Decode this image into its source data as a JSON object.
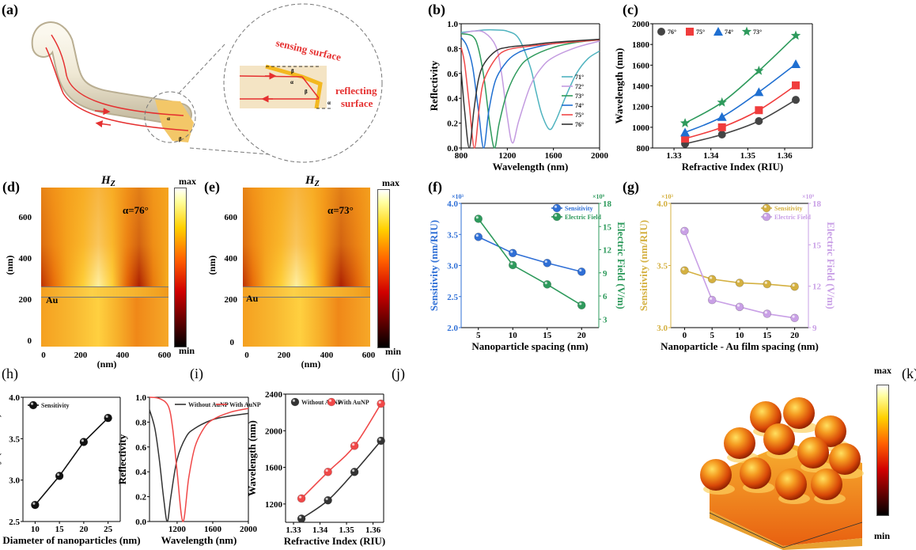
{
  "panel_labels": {
    "a": "(a)",
    "b": "(b)",
    "c": "(c)",
    "d": "(d)",
    "e": "(e)",
    "f": "(f)",
    "g": "(g)",
    "h": "(h)",
    "i": "(i)",
    "j": "(j)",
    "k": "(k)"
  },
  "panel_a": {
    "sensing_label": "sensing surface",
    "reflecting_label_1": "reflecting",
    "reflecting_label_2": "surface",
    "alpha": "α",
    "beta": "β"
  },
  "heatmaps": [
    {
      "title": "H",
      "title_sub": "Z",
      "angle_label": "α=76°",
      "layer_label": "Au",
      "max_label": "max",
      "min_label": "min",
      "xlabel": "(nm)",
      "ylabel": "(nm)",
      "xticks": [
        "0",
        "200",
        "400",
        "600"
      ],
      "yticks": [
        "600",
        "400",
        "200",
        "0"
      ]
    },
    {
      "title": "H",
      "title_sub": "Z",
      "angle_label": "α=73°",
      "layer_label": "Au",
      "max_label": "max",
      "min_label": "min",
      "xlabel": "(nm)",
      "ylabel": "(nm)",
      "xticks": [
        "0",
        "200",
        "400",
        "600"
      ],
      "yticks": [
        "600",
        "400",
        "200",
        "0"
      ]
    }
  ],
  "panel_k": {
    "max_label": "max",
    "min_label": "min"
  },
  "chart_data": [
    {
      "id": "b",
      "type": "line",
      "title": "",
      "xlabel": "Wavelength (nm)",
      "ylabel": "Reflectivity",
      "xlim": [
        800,
        2000
      ],
      "ylim": [
        0,
        1
      ],
      "xticks": [
        800,
        1200,
        1600,
        2000
      ],
      "xtick_labels": [
        "800",
        "1200",
        "1600",
        "2000"
      ],
      "yticks": [
        0,
        0.2,
        0.4,
        0.6,
        0.8,
        1.0
      ],
      "ytick_labels": [
        "0.0",
        "0.2",
        "0.4",
        "0.6",
        "0.8",
        "1.0"
      ],
      "legend": "right",
      "series": [
        {
          "name": "71°",
          "color": "#4fb3bf",
          "x": [
            800,
            900,
            1000,
            1100,
            1200,
            1300,
            1400,
            1450,
            1500,
            1565,
            1620,
            1700,
            1800,
            1900,
            2000
          ],
          "y": [
            0.93,
            0.94,
            0.95,
            0.95,
            0.94,
            0.88,
            0.65,
            0.45,
            0.27,
            0.15,
            0.22,
            0.4,
            0.6,
            0.72,
            0.78
          ]
        },
        {
          "name": "72°",
          "color": "#c39be0",
          "x": [
            800,
            900,
            1000,
            1100,
            1150,
            1200,
            1245,
            1300,
            1400,
            1500,
            1600,
            1800,
            2000
          ],
          "y": [
            0.92,
            0.94,
            0.93,
            0.82,
            0.6,
            0.25,
            0.04,
            0.22,
            0.5,
            0.65,
            0.73,
            0.81,
            0.86
          ]
        },
        {
          "name": "73°",
          "color": "#2e9a5c",
          "x": [
            800,
            900,
            950,
            1000,
            1050,
            1090,
            1130,
            1200,
            1300,
            1400,
            1600,
            1800,
            2000
          ],
          "y": [
            0.92,
            0.9,
            0.8,
            0.55,
            0.18,
            0.0,
            0.2,
            0.45,
            0.64,
            0.73,
            0.81,
            0.85,
            0.87
          ]
        },
        {
          "name": "74°",
          "color": "#1f6fd1",
          "x": [
            800,
            850,
            900,
            950,
            995,
            1040,
            1100,
            1200,
            1300,
            1400,
            1600,
            1800,
            2000
          ],
          "y": [
            0.89,
            0.82,
            0.65,
            0.3,
            0.0,
            0.3,
            0.55,
            0.7,
            0.77,
            0.8,
            0.84,
            0.86,
            0.87
          ]
        },
        {
          "name": "75°",
          "color": "#f04848",
          "x": [
            800,
            830,
            870,
            915,
            960,
            1000,
            1100,
            1200,
            1400,
            1600,
            2000
          ],
          "y": [
            0.81,
            0.68,
            0.35,
            0.0,
            0.35,
            0.55,
            0.72,
            0.79,
            0.82,
            0.84,
            0.87
          ]
        },
        {
          "name": "76°",
          "color": "#333333",
          "x": [
            800,
            830,
            870,
            910,
            950,
            1000,
            1100,
            1200,
            1400,
            1600,
            2000
          ],
          "y": [
            0.62,
            0.3,
            0.0,
            0.3,
            0.55,
            0.68,
            0.78,
            0.81,
            0.83,
            0.85,
            0.875
          ]
        }
      ]
    },
    {
      "id": "c",
      "type": "scatter",
      "title": "",
      "xlabel": "Refractive Index (RIU)",
      "ylabel": "Wavelength (nm)",
      "xlim": [
        1.3242,
        1.3675
      ],
      "ylim": [
        800,
        2000
      ],
      "xticks": [
        1.33,
        1.34,
        1.35,
        1.36
      ],
      "xtick_labels": [
        "1.33",
        "1.34",
        "1.35",
        "1.36"
      ],
      "yticks": [
        800,
        1000,
        1200,
        1400,
        1600,
        1800,
        2000
      ],
      "ytick_labels": [
        "800",
        "1000",
        "1200",
        "1400",
        "1600",
        "1800",
        "2000"
      ],
      "legend": "top-left",
      "fit": "smooth",
      "series": [
        {
          "name": "76°",
          "color": "#444444",
          "marker": "circle",
          "x": [
            1.333,
            1.343,
            1.353,
            1.363
          ],
          "y": [
            840,
            930,
            1060,
            1265
          ]
        },
        {
          "name": "75°",
          "color": "#f03c3c",
          "marker": "square",
          "x": [
            1.333,
            1.343,
            1.353,
            1.363
          ],
          "y": [
            890,
            1000,
            1165,
            1405
          ]
        },
        {
          "name": "74°",
          "color": "#1f6fd1",
          "marker": "triangle",
          "x": [
            1.333,
            1.343,
            1.353,
            1.363
          ],
          "y": [
            950,
            1100,
            1340,
            1610
          ]
        },
        {
          "name": "73°",
          "color": "#2e9a5c",
          "marker": "star",
          "x": [
            1.333,
            1.343,
            1.353,
            1.363
          ],
          "y": [
            1040,
            1240,
            1545,
            1885
          ]
        }
      ]
    },
    {
      "id": "f",
      "type": "line",
      "title": "",
      "xlabel": "Nanoparticle spacing (nm)",
      "ylabel": "Sensitivity (nm/RIU)",
      "ylabel_right": "Electric Field (V/m)",
      "y_multiplier": "×10³",
      "y_right_multiplier": "×10⁹",
      "xlim": [
        2.5,
        22.5
      ],
      "ylim": [
        2.0,
        4.0
      ],
      "ylim_right": [
        1.9,
        18
      ],
      "xticks": [
        5,
        10,
        15,
        20
      ],
      "xtick_labels": [
        "5",
        "10",
        "15",
        "20"
      ],
      "yticks": [
        2.0,
        2.5,
        3.0,
        3.5,
        4.0
      ],
      "ytick_labels": [
        "2.0",
        "2.5",
        "3.0",
        "3.5",
        "4.0"
      ],
      "yticks_right": [
        3,
        6,
        9,
        12,
        15,
        18
      ],
      "ytick_right_labels": [
        "3",
        "6",
        "9",
        "12",
        "15",
        "18"
      ],
      "left_axis_color": "#2f6fd6",
      "right_axis_color": "#2e9a5c",
      "legend": "top-right",
      "series": [
        {
          "name": "Sensitivity",
          "color": "#2f6fd6",
          "marker": "sphere",
          "axis": "left",
          "x": [
            5,
            10,
            15,
            20
          ],
          "y": [
            3.46,
            3.2,
            3.04,
            2.9
          ]
        },
        {
          "name": "Electric Field",
          "color": "#2e9a5c",
          "marker": "sphere",
          "axis": "right",
          "x": [
            5,
            10,
            15,
            20
          ],
          "y": [
            16.0,
            10.0,
            7.5,
            4.8
          ]
        }
      ]
    },
    {
      "id": "g",
      "type": "line",
      "title": "",
      "xlabel": "Nanoparticle - Au film spacing (nm)",
      "ylabel": "Sensitivity (nm/RIU)",
      "ylabel_right": "Electric Field (V/m)",
      "y_multiplier": "×10³",
      "y_right_multiplier": "×10⁹",
      "xlim": [
        -2.5,
        22.5
      ],
      "ylim": [
        3.0,
        4.0
      ],
      "ylim_right": [
        9,
        18
      ],
      "xticks": [
        0,
        5,
        10,
        15,
        20
      ],
      "xtick_labels": [
        "0",
        "5",
        "10",
        "15",
        "20"
      ],
      "yticks": [
        3.0,
        3.5,
        4.0
      ],
      "ytick_labels": [
        "3.0",
        "3.5",
        "4.0"
      ],
      "yticks_right": [
        9,
        12,
        15,
        18
      ],
      "ytick_right_labels": [
        "9",
        "12",
        "15",
        "18"
      ],
      "left_axis_color": "#d4b040",
      "right_axis_color": "#c9a0e6",
      "legend": "top-right",
      "series": [
        {
          "name": "Sensitivity",
          "color": "#d4b040",
          "marker": "sphere",
          "axis": "left",
          "x": [
            0,
            5,
            10,
            15,
            20
          ],
          "y": [
            3.46,
            3.39,
            3.36,
            3.35,
            3.33
          ]
        },
        {
          "name": "Electric Field",
          "color": "#c9a0e6",
          "marker": "sphere",
          "axis": "right",
          "x": [
            0,
            5,
            10,
            15,
            20
          ],
          "y": [
            16.0,
            11.0,
            10.5,
            10.0,
            9.7
          ]
        }
      ]
    },
    {
      "id": "h",
      "type": "line",
      "title": "",
      "xlabel": "Diameter of nanoparticles (nm)",
      "ylabel": "Sensitivity (nm/RIU)",
      "xlim": [
        7.5,
        27.5
      ],
      "ylim": [
        2.5,
        4.0
      ],
      "xticks": [
        10,
        15,
        20,
        25
      ],
      "xtick_labels": [
        "10",
        "15",
        "20",
        "25"
      ],
      "yticks": [
        2.5,
        3.0,
        3.5,
        4.0
      ],
      "ytick_labels": [
        "2.5",
        "3.0",
        "3.5",
        "4.0"
      ],
      "legend": "top-left",
      "series": [
        {
          "name": "Sensitivity",
          "color": "#111111",
          "marker": "sphere",
          "x": [
            10,
            15,
            20,
            25
          ],
          "y": [
            2.7,
            3.05,
            3.46,
            3.75
          ]
        }
      ]
    },
    {
      "id": "i",
      "type": "line",
      "title": "",
      "xlabel": "Wavelength (nm)",
      "ylabel": "Reflectivity",
      "xlim": [
        890,
        2000
      ],
      "ylim": [
        0,
        1
      ],
      "xticks": [
        1200,
        1600,
        2000
      ],
      "xtick_labels": [
        "1200",
        "1600",
        "2000"
      ],
      "yticks": [
        0,
        0.2,
        0.4,
        0.6,
        0.8,
        1.0
      ],
      "ytick_labels": [
        "0.0",
        "0.2",
        "0.4",
        "0.6",
        "0.8",
        "1.0"
      ],
      "legend": "top-right",
      "series": [
        {
          "name": "Without AuNP",
          "color": "#333333",
          "x": [
            890,
            950,
            1000,
            1050,
            1090,
            1130,
            1200,
            1300,
            1400,
            1600,
            1800,
            2000
          ],
          "y": [
            0.9,
            0.75,
            0.5,
            0.18,
            0.0,
            0.2,
            0.5,
            0.68,
            0.75,
            0.82,
            0.85,
            0.87
          ]
        },
        {
          "name": "With AuNP",
          "color": "#f04848",
          "x": [
            890,
            1000,
            1100,
            1150,
            1200,
            1265,
            1330,
            1400,
            1500,
            1600,
            1800,
            2000
          ],
          "y": [
            1.0,
            0.99,
            0.93,
            0.75,
            0.4,
            0.0,
            0.35,
            0.6,
            0.75,
            0.82,
            0.88,
            0.91
          ]
        }
      ]
    },
    {
      "id": "j",
      "type": "scatter",
      "title": "",
      "xlabel": "Refractive Index (RIU)",
      "ylabel": "Wavelength (nm)",
      "xlim": [
        1.327,
        1.364
      ],
      "ylim": [
        1000,
        2400
      ],
      "xticks": [
        1.33,
        1.34,
        1.35,
        1.36
      ],
      "xtick_labels": [
        "1.33",
        "1.34",
        "1.35",
        "1.36"
      ],
      "yticks": [
        1200,
        1600,
        2000,
        2400
      ],
      "ytick_labels": [
        "1200",
        "1600",
        "2000",
        "2400"
      ],
      "legend": "top-left",
      "fit": "smooth",
      "series": [
        {
          "name": "Without AuNP",
          "color": "#333333",
          "marker": "sphere",
          "x": [
            1.333,
            1.343,
            1.353,
            1.363
          ],
          "y": [
            1040,
            1240,
            1550,
            1890
          ]
        },
        {
          "name": "With AuNP",
          "color": "#f04848",
          "marker": "sphere",
          "x": [
            1.333,
            1.343,
            1.353,
            1.363
          ],
          "y": [
            1260,
            1550,
            1835,
            2295
          ]
        }
      ]
    }
  ]
}
